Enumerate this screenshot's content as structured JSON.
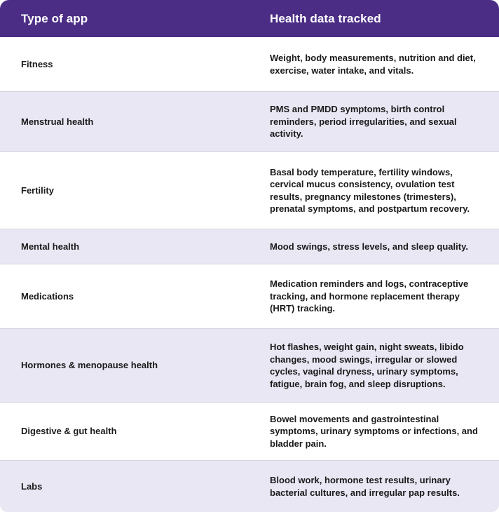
{
  "table": {
    "headers": {
      "col1": "Type of app",
      "col2": "Health data tracked"
    },
    "rows": [
      {
        "type": "Fitness",
        "data": "Weight, body measurements, nutrition and diet, exercise, water intake, and vitals."
      },
      {
        "type": "Menstrual health",
        "data": "PMS and PMDD symptoms, birth control reminders, period irregularities, and sexual activity."
      },
      {
        "type": "Fertility",
        "data": "Basal body temperature, fertility windows, cervical mucus consistency, ovulation test results, pregnancy milestones (trimesters), prenatal symptoms, and postpartum recovery."
      },
      {
        "type": "Mental health",
        "data": "Mood swings, stress levels, and sleep quality."
      },
      {
        "type": "Medications",
        "data": "Medication reminders and logs, contraceptive tracking, and hormone replacement therapy (HRT) tracking."
      },
      {
        "type": "Hormones & menopause health",
        "data": "Hot flashes, weight gain, night sweats, libido changes, mood swings, irregular or slowed cycles, vaginal dryness, urinary symptoms, fatigue, brain fog, and sleep disruptions."
      },
      {
        "type": "Digestive & gut health",
        "data": "Bowel movements and gastrointestinal symptoms, urinary symptoms or infections, and bladder pain."
      },
      {
        "type": "Labs",
        "data": "Blood work, hormone test results, urinary bacterial cultures, and irregular pap results."
      }
    ]
  },
  "colors": {
    "header_bg": "#4B2D85",
    "header_text": "#FFFFFF",
    "alt_row_bg": "#EAE7F4",
    "row_bg": "#FFFFFF",
    "body_text": "#1A1A1A",
    "divider": "#D7D4DE"
  }
}
